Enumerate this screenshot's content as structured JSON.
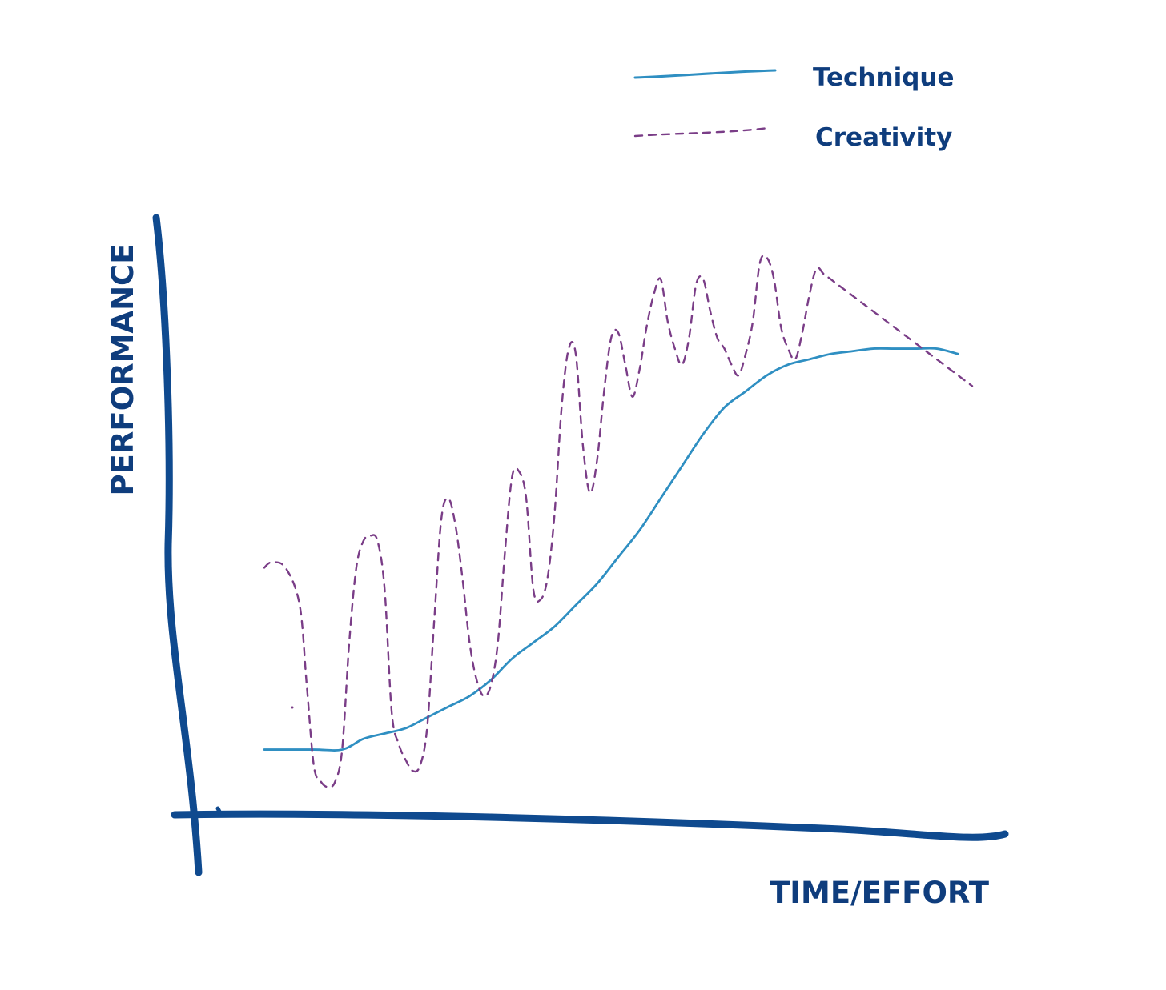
{
  "chart_data": {
    "type": "line",
    "title": "",
    "xlabel": "TIME/EFFORT",
    "ylabel": "PERFORMANCE",
    "xlim": [
      0,
      100
    ],
    "ylim": [
      0,
      100
    ],
    "grid": false,
    "legend_position": "top-right",
    "colors": {
      "axes": "#0f4a8f",
      "labels": "#0f3d7d",
      "technique": "#2f8fc2",
      "creativity": "#7a3d87"
    },
    "series": [
      {
        "name": "Technique",
        "style": "solid",
        "x": [
          0,
          7,
          11,
          14,
          17,
          20,
          23,
          26,
          29,
          32,
          35,
          38,
          41,
          44,
          47,
          50,
          53,
          56,
          59,
          62,
          65,
          68,
          71,
          74,
          77,
          80,
          83,
          86,
          89,
          92,
          95,
          98
        ],
        "y": [
          8,
          8,
          8,
          10,
          11,
          12,
          14,
          16,
          18,
          21,
          25,
          28,
          31,
          35,
          39,
          44,
          49,
          55,
          61,
          67,
          72,
          75,
          78,
          80,
          81,
          82,
          82.5,
          83,
          83,
          83,
          83,
          82
        ]
      },
      {
        "name": "Creativity",
        "style": "dashed",
        "x": [
          0,
          1,
          3,
          5,
          6,
          7,
          8,
          9,
          10,
          11,
          12,
          13,
          14,
          15,
          16,
          17,
          18,
          19,
          20,
          21,
          22,
          23,
          24,
          25,
          26,
          27,
          28,
          29,
          30,
          31,
          32,
          33,
          34,
          35,
          36,
          37,
          38,
          39,
          40,
          41,
          42,
          43,
          44,
          45,
          46,
          47,
          48,
          49,
          50,
          51,
          52,
          53,
          54,
          55,
          56,
          57,
          58,
          59,
          60,
          61,
          62,
          63,
          64,
          65,
          66,
          67,
          68,
          69,
          70,
          71,
          72,
          73,
          74,
          75,
          76,
          77,
          78,
          79,
          80,
          81,
          82,
          83,
          84,
          85,
          86,
          87,
          88,
          89,
          90,
          91,
          92,
          93,
          94,
          95,
          96,
          97,
          98,
          99,
          100
        ],
        "y": [
          42,
          43,
          42,
          35,
          20,
          5,
          2,
          1,
          2,
          8,
          28,
          42,
          47,
          48,
          47,
          38,
          15,
          9,
          6,
          4,
          5,
          12,
          32,
          51,
          55,
          50,
          40,
          28,
          21,
          18,
          20,
          28,
          45,
          59,
          60,
          55,
          38,
          36,
          40,
          52,
          72,
          83,
          82,
          65,
          56,
          62,
          75,
          85,
          86,
          80,
          74,
          79,
          87,
          93,
          96,
          88,
          83,
          80,
          85,
          95,
          96,
          90,
          85,
          83,
          80,
          78,
          82,
          88,
          99,
          100,
          96,
          87,
          83,
          81,
          86,
          93,
          98,
          97,
          96,
          95,
          94,
          93,
          92,
          91,
          90,
          89,
          88,
          87,
          86,
          85,
          84,
          83,
          82,
          81,
          80,
          79,
          78,
          77,
          76
        ]
      }
    ]
  }
}
